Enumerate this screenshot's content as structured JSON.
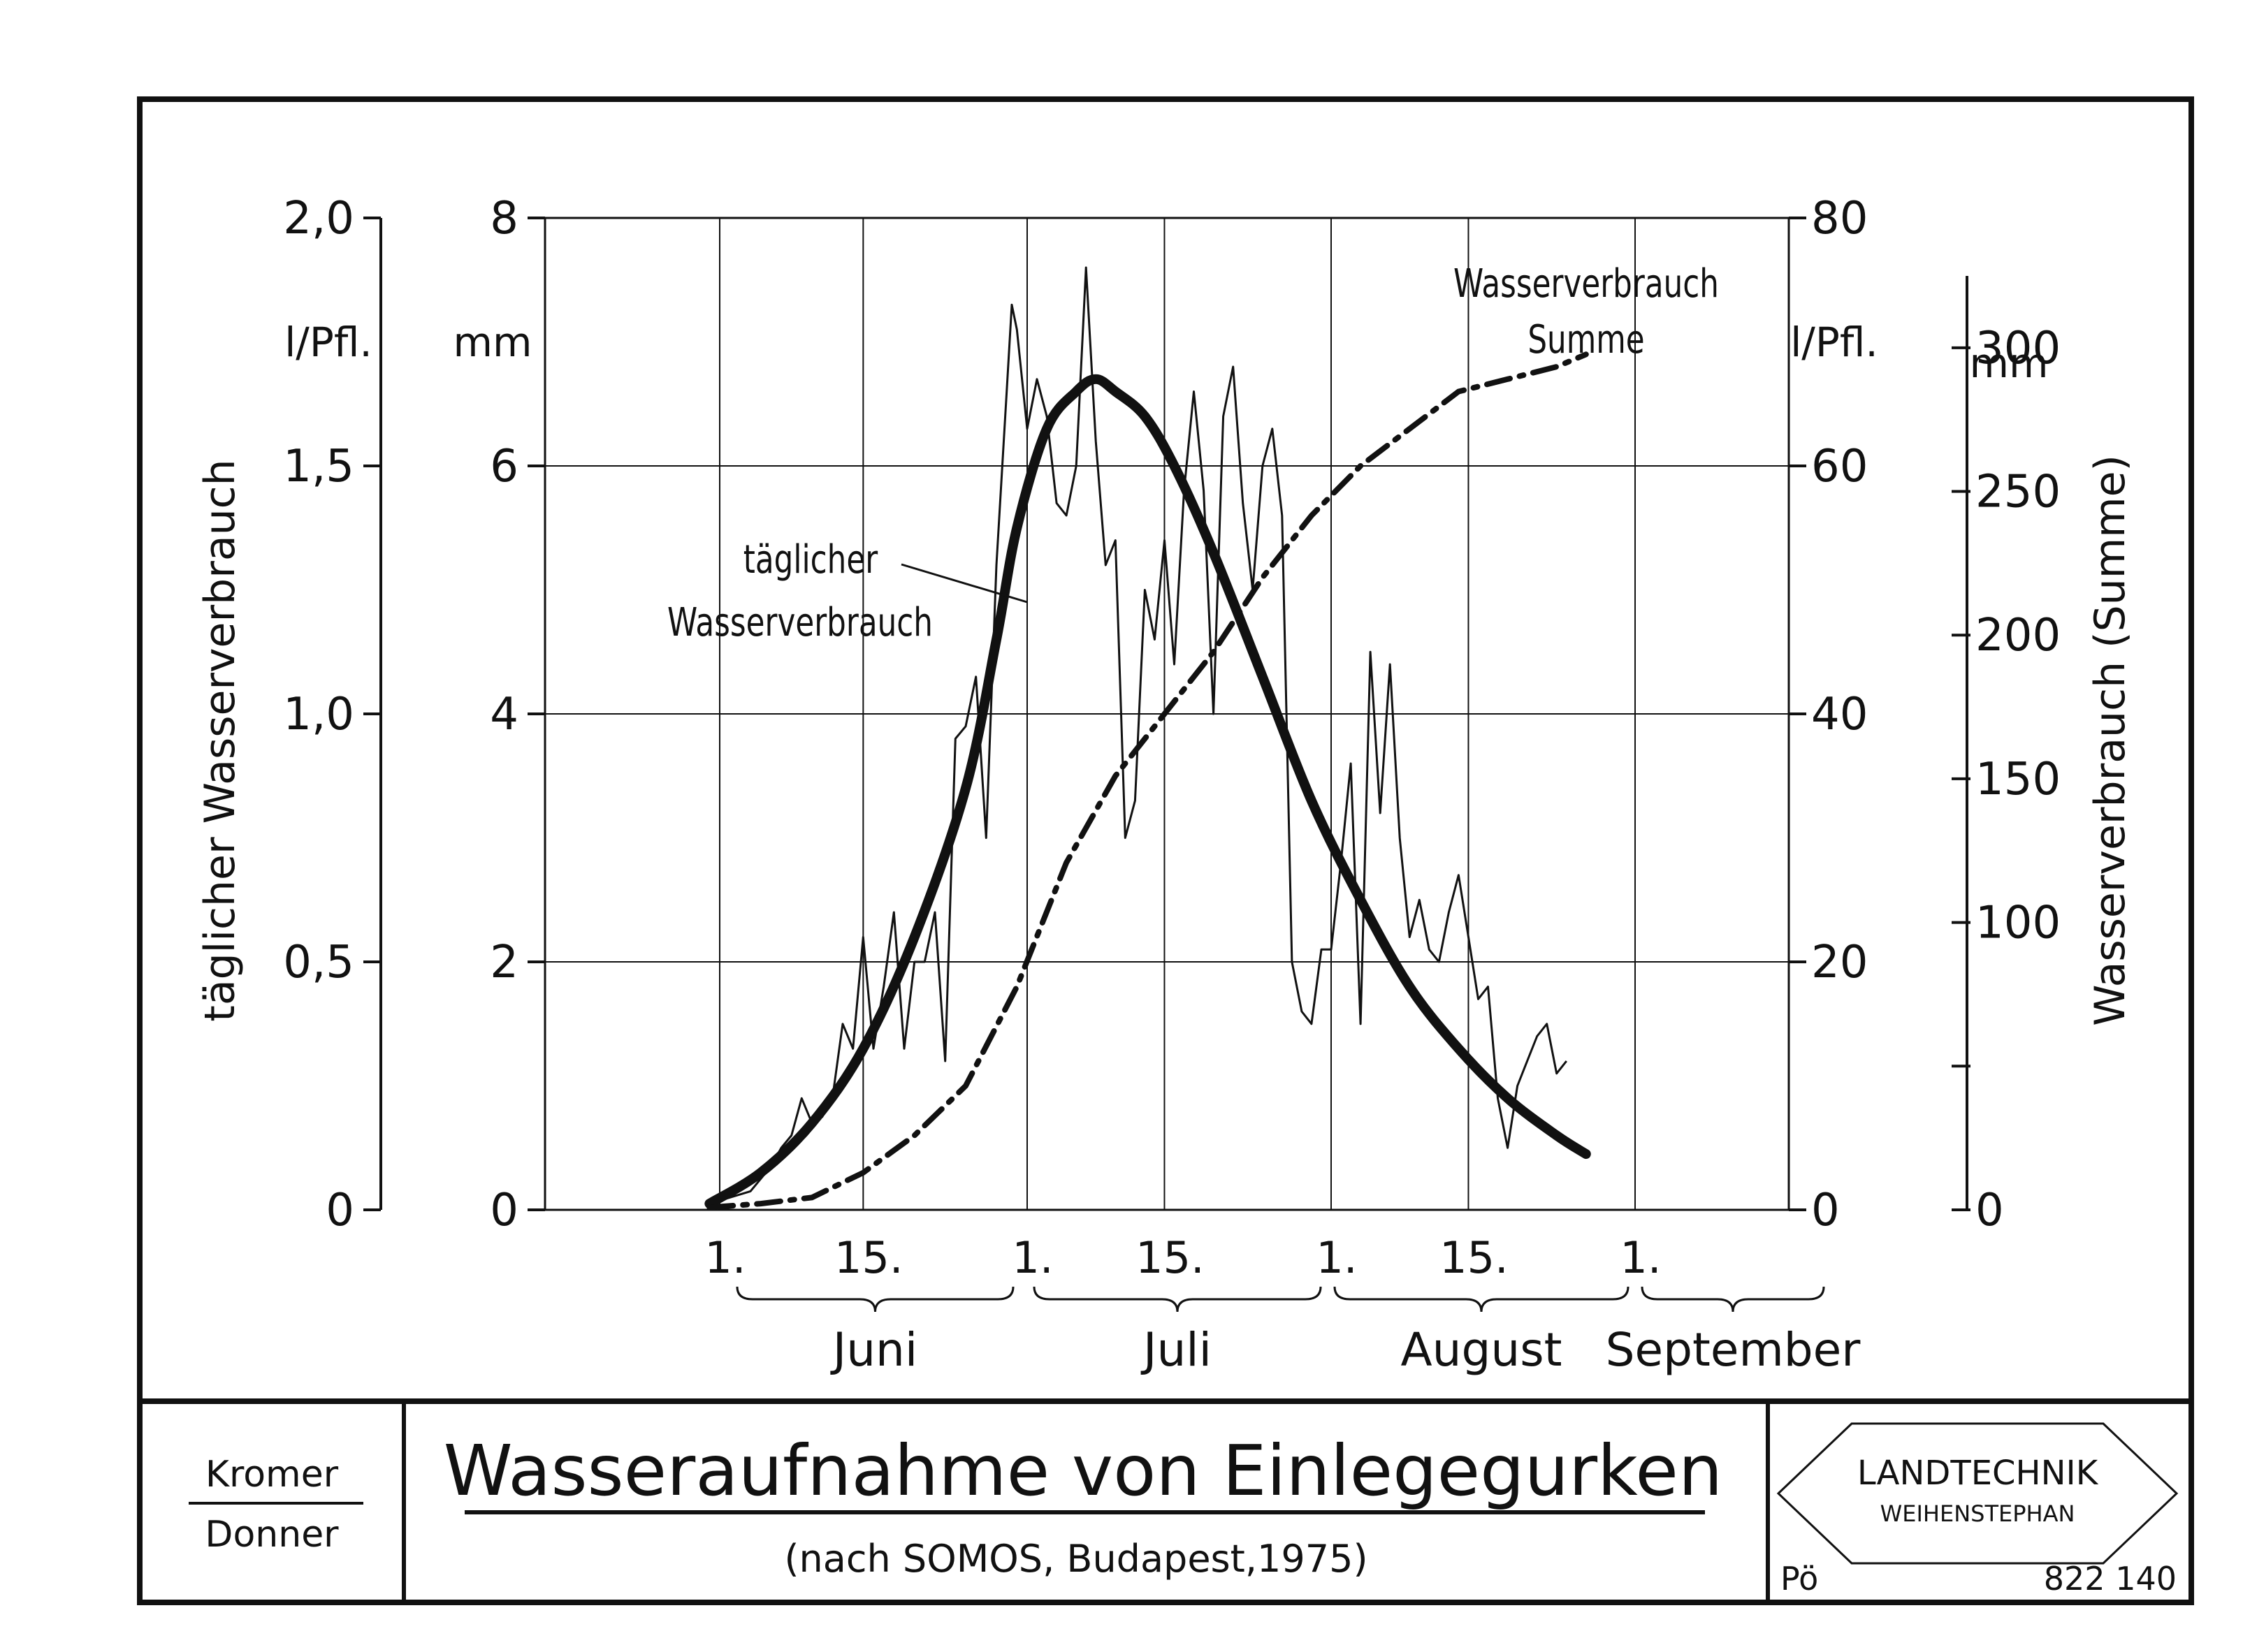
{
  "chart_data": {
    "type": "line",
    "x_unit": "day of season (1 = 1. Juni)",
    "months": [
      "Juni",
      "Juli",
      "August",
      "September"
    ],
    "x_tick_labels": [
      "1.",
      "15.",
      "1.",
      "15.",
      "1.",
      "15.",
      "1."
    ],
    "x_tick_days": [
      1,
      15,
      31,
      45,
      62,
      76,
      93
    ],
    "y_left_lpfl": {
      "label": "täglicher Wasserverbrauch",
      "unit": "l/Pfl.",
      "ticks": [
        "0",
        "0,5",
        "1,0",
        "1,5",
        "2,0"
      ],
      "range": [
        0,
        2.0
      ]
    },
    "y_left_mm": {
      "unit": "mm",
      "ticks": [
        "0",
        "2",
        "4",
        "6",
        "8"
      ],
      "range": [
        0,
        8
      ]
    },
    "y_right_lpfl": {
      "unit": "l/Pfl.",
      "ticks": [
        "0",
        "20",
        "40",
        "60",
        "80"
      ],
      "range": [
        0,
        80
      ]
    },
    "y_right_mm": {
      "label": "Wasserverbrauch (Summe)",
      "unit": "mm",
      "ticks": [
        "0",
        "100",
        "150",
        "200",
        "250",
        "300"
      ],
      "tick_values": [
        0,
        100,
        150,
        200,
        250,
        300
      ],
      "minor_ticks": [
        50
      ],
      "range": [
        0,
        325
      ]
    },
    "grid": true,
    "series": [
      {
        "name": "täglicher Wasserverbrauch",
        "style": "thin",
        "axis": "mm",
        "x": [
          0,
          2,
          4,
          6,
          7,
          8,
          9,
          10,
          11,
          12,
          13,
          14,
          15,
          16,
          17,
          18,
          19,
          20,
          21,
          22,
          23,
          24,
          25,
          26,
          27,
          28,
          29,
          29.5,
          30,
          31,
          32,
          33,
          34,
          35,
          36,
          37,
          38,
          39,
          40,
          41,
          42,
          43,
          44,
          45,
          46,
          47,
          48,
          49,
          50,
          51,
          52,
          53,
          54,
          55,
          56,
          57,
          58,
          59,
          60,
          61,
          62,
          63,
          64,
          65,
          66,
          67,
          68,
          69,
          70,
          71,
          72,
          73,
          74,
          75,
          76,
          77,
          78,
          79,
          80,
          81,
          82,
          83,
          84,
          85,
          86
        ],
        "y": [
          0.05,
          0.1,
          0.15,
          0.35,
          0.5,
          0.6,
          0.9,
          0.7,
          0.75,
          0.9,
          1.5,
          1.3,
          2.2,
          1.3,
          1.8,
          2.4,
          1.3,
          2.0,
          2.0,
          2.4,
          1.2,
          3.8,
          3.9,
          4.3,
          3.0,
          5.2,
          6.6,
          7.3,
          7.1,
          6.3,
          6.7,
          6.4,
          5.7,
          5.6,
          6.0,
          7.6,
          6.2,
          5.2,
          5.4,
          3.0,
          3.3,
          5.0,
          4.6,
          5.4,
          4.4,
          5.8,
          6.6,
          5.8,
          4.0,
          6.4,
          6.8,
          5.7,
          5.0,
          6.0,
          6.3,
          5.6,
          2.0,
          1.6,
          1.5,
          2.1,
          2.1,
          2.8,
          3.6,
          1.5,
          4.5,
          3.2,
          4.4,
          3.0,
          2.2,
          2.5,
          2.1,
          2.0,
          2.4,
          2.7,
          2.2,
          1.7,
          1.8,
          0.9,
          0.5,
          1.0,
          1.2,
          1.4,
          1.5,
          1.1,
          1.2
        ]
      },
      {
        "name": "",
        "style": "bold-smooth",
        "axis": "mm",
        "x": [
          0,
          5,
          10,
          15,
          20,
          25,
          28,
          30,
          33,
          36,
          38,
          40,
          43,
          46,
          50,
          55,
          60,
          65,
          70,
          75,
          80,
          85,
          88
        ],
        "y": [
          0.05,
          0.3,
          0.7,
          1.3,
          2.2,
          3.4,
          4.6,
          5.5,
          6.3,
          6.6,
          6.7,
          6.6,
          6.4,
          6.0,
          5.3,
          4.3,
          3.3,
          2.5,
          1.8,
          1.3,
          0.9,
          0.6,
          0.45
        ]
      },
      {
        "name": "Wasserverbrauch Summe",
        "style": "dash-dot",
        "axis": "l/Pfl.",
        "x": [
          0,
          5,
          10,
          15,
          20,
          25,
          30,
          35,
          40,
          45,
          50,
          55,
          60,
          65,
          70,
          75,
          80,
          85,
          88
        ],
        "y": [
          0.2,
          0.5,
          1,
          3,
          6,
          10,
          18,
          28,
          35,
          40,
          45,
          51,
          56,
          60,
          63,
          66,
          67,
          68,
          69
        ]
      }
    ],
    "annotations": {
      "daily_line1": "täglicher",
      "daily_line2": "Wasserverbrauch",
      "sum_line1": "Wasserverbrauch",
      "sum_line2": "Summe"
    }
  },
  "title_block": {
    "author_top": "Kromer",
    "author_bottom": "Donner",
    "title": "Wasseraufnahme von Einlegegurken",
    "subtitle": "(nach SOMOS, Budapest,1975)",
    "logo_line1": "LANDTECHNIK",
    "logo_line2": "WEIHENSTEPHAN",
    "code_left": "Pö",
    "code_right": "822 140"
  }
}
